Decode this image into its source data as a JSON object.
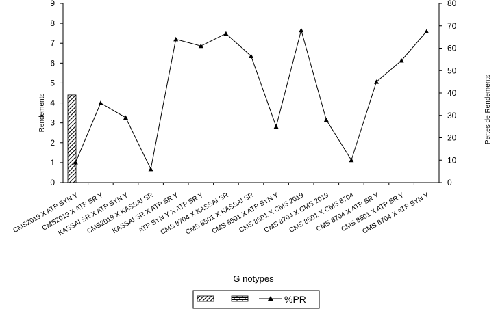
{
  "chart_data": {
    "type": "line",
    "xlabel": "G notypes",
    "ylabel_left": "Rendements",
    "ylabel_right": "Pertes de Rendements",
    "ylim_left": [
      0,
      9
    ],
    "ylim_right": [
      0,
      80
    ],
    "yticks_left": [
      "0",
      "1",
      "2",
      "3",
      "4",
      "5",
      "6",
      "7",
      "8",
      "9"
    ],
    "yticks_right": [
      "0",
      "10",
      "20",
      "30",
      "40",
      "50",
      "60",
      "70",
      "80"
    ],
    "grid": false,
    "legend_position": "bottom",
    "categories": [
      "CMS2019 X ATP SYN Y",
      "CMS2019 X ATP SR Y",
      "KASSAI SR X ATP SYN Y",
      "CMS2019 X KASSAI SR",
      "KASSAI SR X ATP SR Y",
      "ATP SYN Y X ATP SR Y",
      "CMS 8704 X KASSAI SR",
      "CMS 8501 X KASSAI SR",
      "CMS 8501 X ATP SYN Y",
      "CMS 8501 X CMS 2019",
      "CMS 8704 X CMS 2019",
      "CMS 8501 X CMS 8704",
      "CMS 8704 X ATP SR Y",
      "CMS 8501 X ATP SR Y",
      "CMS 8704 X ATP SYN Y"
    ],
    "bars": [
      {
        "name": "",
        "axis": "left",
        "values": [
          4.4
        ]
      }
    ],
    "series": [
      {
        "name": "%PR",
        "axis": "right",
        "marker": "triangle",
        "values": [
          9,
          35.5,
          29,
          6,
          64,
          61,
          66.5,
          56.5,
          25,
          68,
          28,
          10,
          45,
          54.5,
          67.5
        ]
      }
    ],
    "legend": [
      {
        "name": "",
        "swatch": "hatched"
      },
      {
        "name": "",
        "swatch": "brick"
      },
      {
        "name": "%PR",
        "swatch": "line-triangle"
      }
    ]
  }
}
